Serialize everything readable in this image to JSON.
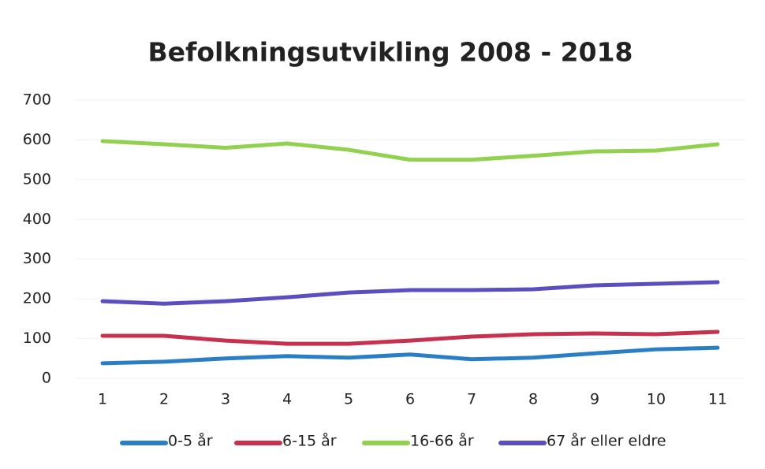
{
  "chart_data": {
    "type": "line",
    "title": "Befolkningsutvikling 2008 - 2018",
    "categories": [
      "1",
      "2",
      "3",
      "4",
      "5",
      "6",
      "7",
      "8",
      "9",
      "10",
      "11"
    ],
    "series": [
      {
        "name": "0-5 år",
        "color": "#2a7fc4",
        "values": [
          38,
          42,
          50,
          56,
          52,
          60,
          48,
          52,
          63,
          73,
          77
        ]
      },
      {
        "name": "6-15 år",
        "color": "#c8304f",
        "values": [
          107,
          107,
          95,
          87,
          87,
          95,
          105,
          111,
          113,
          111,
          117
        ]
      },
      {
        "name": "16-66 år",
        "color": "#92d050",
        "values": [
          597,
          589,
          580,
          591,
          575,
          550,
          550,
          560,
          571,
          573,
          589
        ]
      },
      {
        "name": "67 år eller eldre",
        "color": "#5b4fbf",
        "values": [
          194,
          188,
          194,
          204,
          216,
          222,
          222,
          224,
          234,
          238,
          242
        ]
      }
    ],
    "ylim": [
      0,
      700
    ],
    "yticks": [
      0,
      100,
      200,
      300,
      400,
      500,
      600,
      700
    ],
    "grid": true,
    "legend": "bottom"
  }
}
